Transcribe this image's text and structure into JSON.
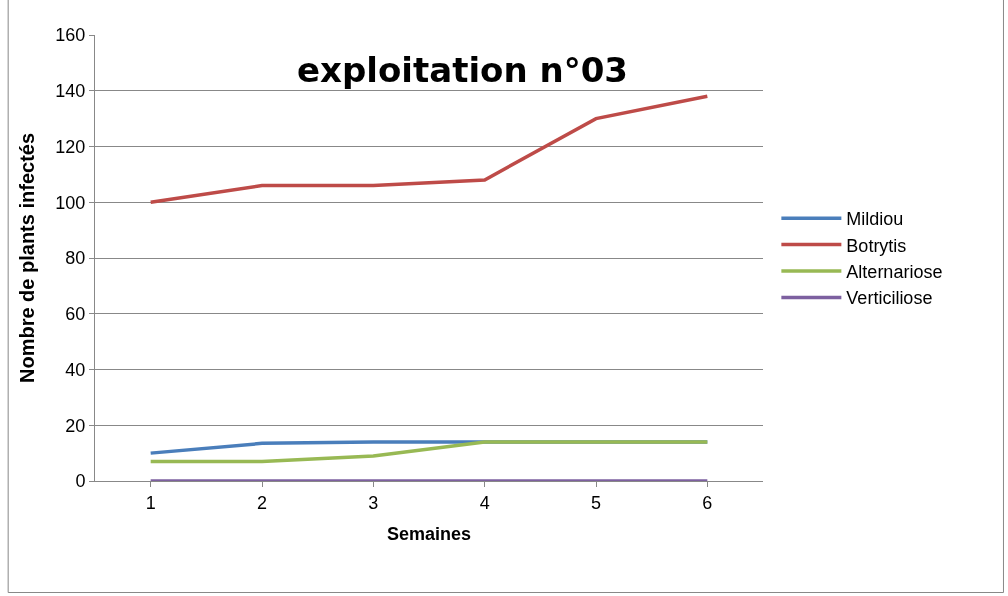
{
  "chart_data": {
    "type": "line",
    "title": "exploitation n°03",
    "xlabel": "Semaines",
    "ylabel": "Nombre de plants infectés",
    "categories": [
      "1",
      "2",
      "3",
      "4",
      "5",
      "6"
    ],
    "series": [
      {
        "name": "Mildiou",
        "color": "#4a7ebb",
        "values": [
          10,
          13.5,
          14,
          14,
          14,
          14
        ]
      },
      {
        "name": "Botrytis",
        "color": "#be4b48",
        "values": [
          100,
          106,
          106,
          108,
          130,
          138
        ]
      },
      {
        "name": "Alternariose",
        "color": "#98b954",
        "values": [
          7,
          7,
          9,
          14,
          14,
          14
        ]
      },
      {
        "name": "Verticiliose",
        "color": "#7d60a0",
        "values": [
          0,
          0,
          0,
          0,
          0,
          0
        ]
      }
    ],
    "ylim": [
      0,
      160
    ],
    "yticks": [
      0,
      20,
      40,
      60,
      80,
      100,
      120,
      140,
      160
    ],
    "grid": "y",
    "legend": "right",
    "marker": "none",
    "line_style": "solid"
  }
}
